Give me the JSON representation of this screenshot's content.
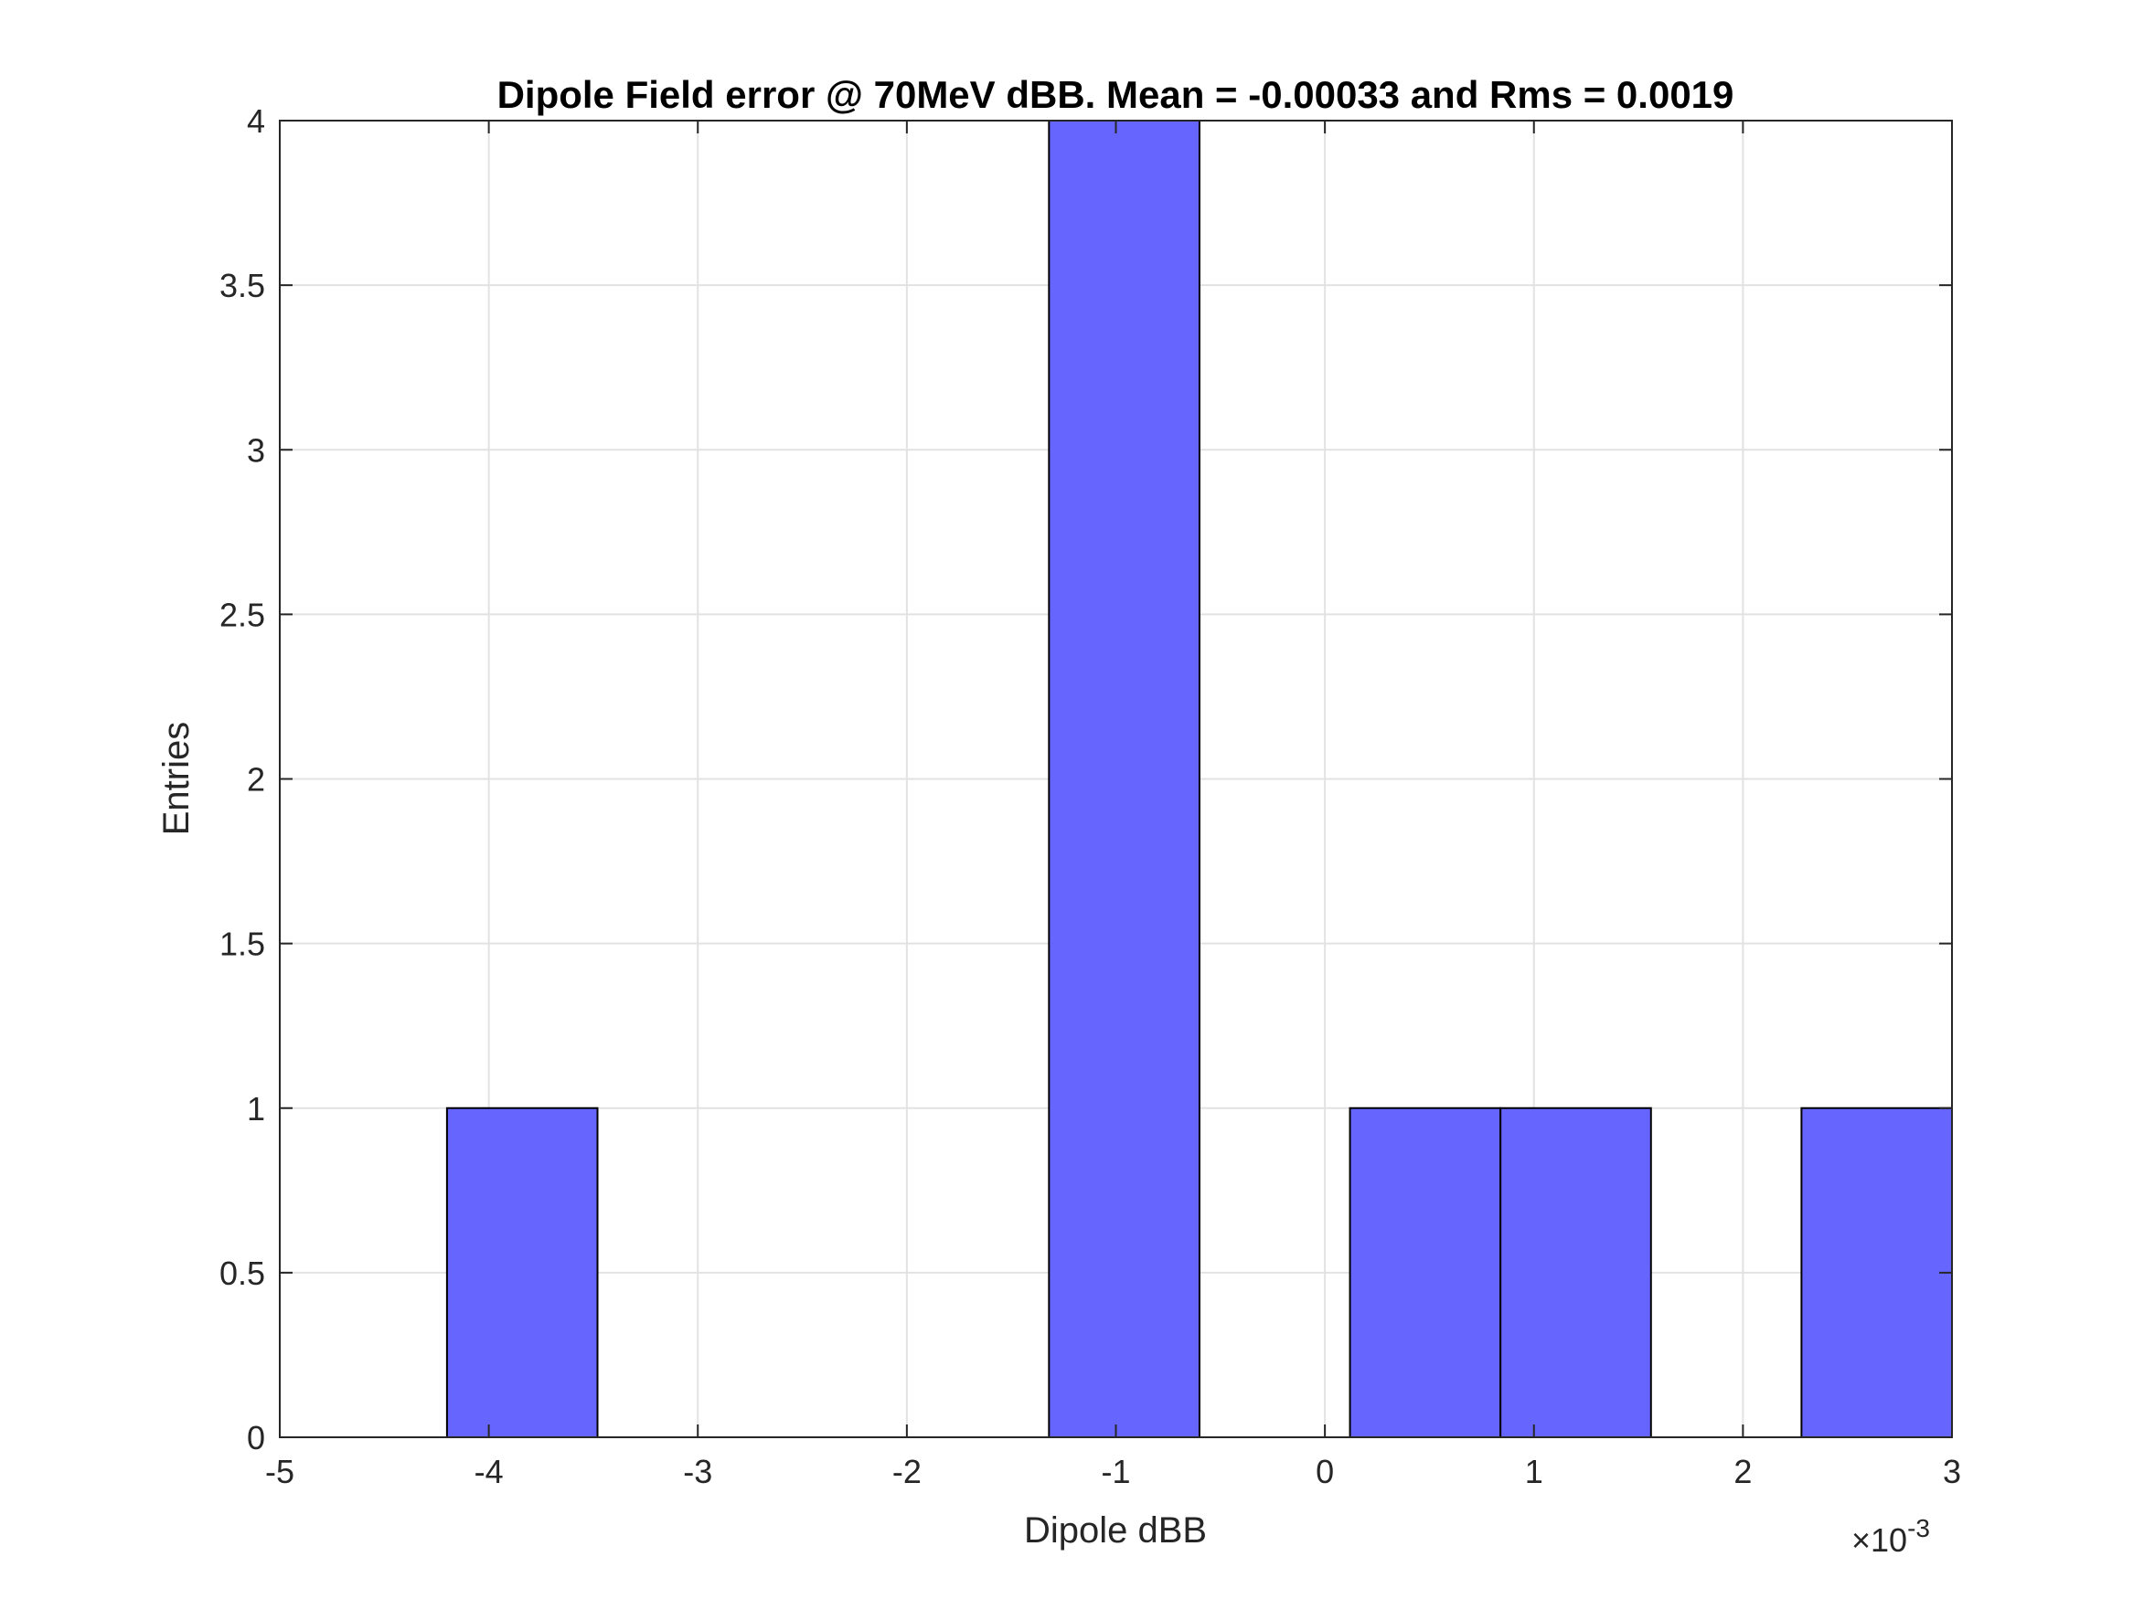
{
  "chart_data": {
    "type": "bar",
    "title": "Dipole Field error @ 70MeV dBB. Mean = -0.00033 and Rms = 0.0019",
    "xlabel": "Dipole dBB",
    "ylabel": "Entries",
    "x_exponent_label": "×10",
    "x_exponent_power": "-3",
    "xlim": [
      -0.005,
      0.003
    ],
    "ylim": [
      0,
      4
    ],
    "x_ticks": [
      -0.005,
      -0.004,
      -0.003,
      -0.002,
      -0.001,
      0,
      0.001,
      0.002,
      0.003
    ],
    "x_tick_labels": [
      "-5",
      "-4",
      "-3",
      "-2",
      "-1",
      "0",
      "1",
      "2",
      "3"
    ],
    "y_ticks": [
      0,
      0.5,
      1,
      1.5,
      2,
      2.5,
      3,
      3.5,
      4
    ],
    "y_tick_labels": [
      "0",
      "0.5",
      "1",
      "1.5",
      "2",
      "2.5",
      "3",
      "3.5",
      "4"
    ],
    "grid": true,
    "bar_color": "#6666ff",
    "bins": [
      {
        "x0": -0.0042,
        "x1": -0.00348,
        "count": 1
      },
      {
        "x0": -0.00132,
        "x1": -0.0006,
        "count": 4
      },
      {
        "x0": 0.00012,
        "x1": 0.00084,
        "count": 1
      },
      {
        "x0": 0.00084,
        "x1": 0.00156,
        "count": 1
      },
      {
        "x0": 0.00228,
        "x1": 0.003,
        "count": 1
      }
    ]
  }
}
